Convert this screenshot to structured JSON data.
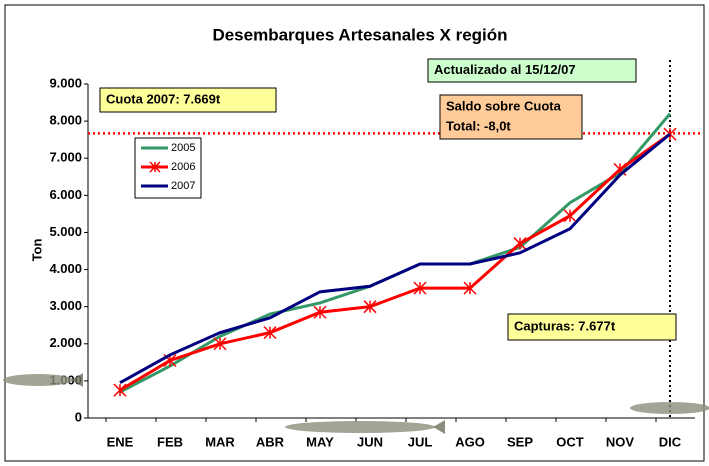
{
  "chart_data": {
    "type": "line",
    "title": "Desembarques Artesanales X región",
    "y_label": "Ton",
    "categories": [
      "ENE",
      "FEB",
      "MAR",
      "ABR",
      "MAY",
      "JUN",
      "JUL",
      "AGO",
      "SEP",
      "OCT",
      "NOV",
      "DIC"
    ],
    "series": [
      {
        "name": "2005",
        "color": "#339966",
        "values": [
          700,
          1400,
          2200,
          2800,
          3100,
          3550,
          4150,
          4150,
          4600,
          5800,
          6600,
          8200
        ]
      },
      {
        "name": "2006",
        "color": "#ff0000",
        "marker": "asterisk",
        "values": [
          750,
          1550,
          2000,
          2300,
          2850,
          3000,
          3500,
          3500,
          4700,
          5450,
          6700,
          7650
        ]
      },
      {
        "name": "2007",
        "color": "#000080",
        "values": [
          950,
          1700,
          2300,
          2700,
          3400,
          3550,
          4150,
          4150,
          4450,
          5100,
          6550,
          7650
        ]
      }
    ],
    "ylim": [
      0,
      9000
    ],
    "yticks": [
      0,
      {
        "value": 1000,
        "label": "1.000"
      },
      {
        "value": 2000,
        "label": "2.000"
      },
      {
        "value": 3000,
        "label": "3.000"
      },
      {
        "value": 4000,
        "label": "4.000"
      },
      {
        "value": 5000,
        "label": "5.000"
      },
      {
        "value": 6000,
        "label": "6.000"
      },
      {
        "value": 7000,
        "label": "7.000"
      },
      {
        "value": 8000,
        "label": "8.000"
      },
      {
        "value": 9000,
        "label": "9.000"
      }
    ],
    "reference_line": {
      "value": 7669,
      "color": "#ff0000"
    },
    "annotations": [
      {
        "lines": [
          "Cuota 2007: 7.669t"
        ],
        "color": "#ffff99"
      },
      {
        "lines": [
          "Actualizado al 15/12/07"
        ],
        "color": "#ccffcc"
      },
      {
        "lines": [
          "Saldo sobre Cuota",
          "Total: -8,0t"
        ],
        "color": "#ffcc99"
      },
      {
        "lines": [
          "Capturas: 7.677t"
        ],
        "color": "#ffff99"
      }
    ]
  }
}
